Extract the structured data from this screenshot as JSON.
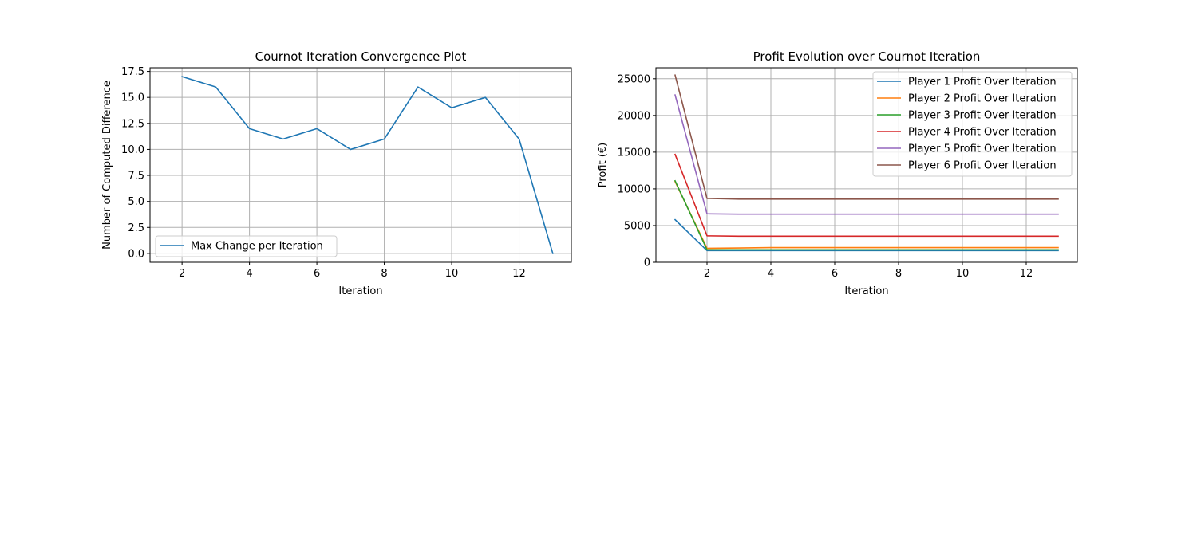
{
  "chart_data": [
    {
      "type": "line",
      "title": "Cournot Iteration Convergence Plot",
      "xlabel": "Iteration",
      "ylabel": "Number of Computed Difference",
      "xlim": [
        1.05,
        13.55
      ],
      "ylim": [
        -0.85,
        17.85
      ],
      "xticks": [
        2,
        4,
        6,
        8,
        10,
        12
      ],
      "yticks": [
        0.0,
        2.5,
        5.0,
        7.5,
        10.0,
        12.5,
        15.0,
        17.5
      ],
      "xtick_labels": [
        "2",
        "4",
        "6",
        "8",
        "10",
        "12"
      ],
      "ytick_labels": [
        "0.0",
        "2.5",
        "5.0",
        "7.5",
        "10.0",
        "12.5",
        "15.0",
        "17.5"
      ],
      "grid": true,
      "legend_position": "lower-left",
      "series": [
        {
          "name": "Max Change per Iteration",
          "color": "#1f77b4",
          "x": [
            2,
            3,
            4,
            5,
            6,
            7,
            8,
            9,
            10,
            11,
            12,
            13
          ],
          "y": [
            17,
            16,
            12,
            11,
            12,
            10,
            11,
            16,
            14,
            15,
            11,
            0
          ]
        }
      ]
    },
    {
      "type": "line",
      "title": "Profit Evolution over Cournot Iteration",
      "xlabel": "Iteration",
      "ylabel": "Profit (€)",
      "xlim": [
        0.4,
        13.6
      ],
      "ylim": [
        0,
        26500
      ],
      "xticks": [
        2,
        4,
        6,
        8,
        10,
        12
      ],
      "yticks": [
        0,
        5000,
        10000,
        15000,
        20000,
        25000
      ],
      "xtick_labels": [
        "2",
        "4",
        "6",
        "8",
        "10",
        "12"
      ],
      "ytick_labels": [
        "0",
        "5000",
        "10000",
        "15000",
        "20000",
        "25000"
      ],
      "grid": true,
      "legend_position": "upper-right",
      "series": [
        {
          "name": "Player 1 Profit Over Iteration",
          "color": "#1f77b4",
          "x": [
            1,
            2,
            3,
            4,
            5,
            6,
            7,
            8,
            9,
            10,
            11,
            12,
            13
          ],
          "y": [
            5800,
            1600,
            1600,
            1600,
            1600,
            1600,
            1600,
            1600,
            1600,
            1600,
            1600,
            1600,
            1600
          ]
        },
        {
          "name": "Player 2 Profit Over Iteration",
          "color": "#ff7f0e",
          "x": [
            1,
            2,
            3,
            4,
            5,
            6,
            7,
            8,
            9,
            10,
            11,
            12,
            13
          ],
          "y": [
            11000,
            1900,
            1950,
            2000,
            2000,
            2000,
            2000,
            2000,
            2000,
            2000,
            2000,
            2000,
            2000
          ]
        },
        {
          "name": "Player 3 Profit Over Iteration",
          "color": "#2ca02c",
          "x": [
            1,
            2,
            3,
            4,
            5,
            6,
            7,
            8,
            9,
            10,
            11,
            12,
            13
          ],
          "y": [
            11100,
            1700,
            1700,
            1700,
            1700,
            1700,
            1700,
            1700,
            1700,
            1700,
            1700,
            1700,
            1700
          ]
        },
        {
          "name": "Player 4 Profit Over Iteration",
          "color": "#d62728",
          "x": [
            1,
            2,
            3,
            4,
            5,
            6,
            7,
            8,
            9,
            10,
            11,
            12,
            13
          ],
          "y": [
            14700,
            3600,
            3550,
            3550,
            3550,
            3550,
            3550,
            3550,
            3550,
            3550,
            3550,
            3550,
            3550
          ]
        },
        {
          "name": "Player 5 Profit Over Iteration",
          "color": "#9467bd",
          "x": [
            1,
            2,
            3,
            4,
            5,
            6,
            7,
            8,
            9,
            10,
            11,
            12,
            13
          ],
          "y": [
            22800,
            6600,
            6550,
            6550,
            6550,
            6550,
            6550,
            6550,
            6550,
            6550,
            6550,
            6550,
            6550
          ]
        },
        {
          "name": "Player 6 Profit Over Iteration",
          "color": "#8c564b",
          "x": [
            1,
            2,
            3,
            4,
            5,
            6,
            7,
            8,
            9,
            10,
            11,
            12,
            13
          ],
          "y": [
            25500,
            8700,
            8600,
            8600,
            8600,
            8600,
            8600,
            8600,
            8600,
            8600,
            8600,
            8600,
            8600
          ]
        }
      ]
    }
  ]
}
